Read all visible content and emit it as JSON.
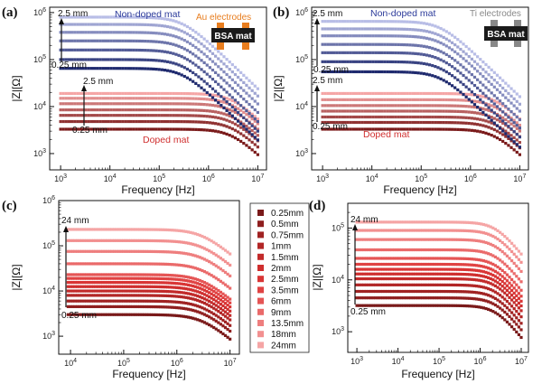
{
  "chart_data": [
    {
      "panel": "(a)",
      "type": "scatter",
      "xlabel": "Frequency [Hz]",
      "ylabel": "|Z|[Ω]",
      "xscale": "log",
      "yscale": "log",
      "xlim": [
        600,
        15000000
      ],
      "ylim": [
        450,
        1300000
      ],
      "xticks": [
        "10^3",
        "10^4",
        "10^5",
        "10^6",
        "10^7"
      ],
      "yticks": [
        "10^3",
        "10^4",
        "10^5",
        "10^6"
      ],
      "annotations": {
        "non_doped_top": "2.5 mm",
        "non_doped_bottom": "0.25 mm",
        "non_doped_label": "Non-doped mat",
        "doped_top": "2.5 mm",
        "doped_bottom": "0.25 mm",
        "doped_label": "Doped mat",
        "electrode_label": "Au electrodes",
        "chip_label": "BSA mat"
      },
      "series": [
        {
          "group": "Non-doped mat",
          "spacing": "2.5 mm",
          "plateau": 800000,
          "fc": 300000,
          "end_freq": 10000000
        },
        {
          "group": "Non-doped mat",
          "spacing": "2.0 mm",
          "plateau": 560000,
          "fc": 300000,
          "end_freq": 10000000
        },
        {
          "group": "Non-doped mat",
          "spacing": "1.5 mm",
          "plateau": 380000,
          "fc": 300000,
          "end_freq": 10000000
        },
        {
          "group": "Non-doped mat",
          "spacing": "1.0 mm",
          "plateau": 250000,
          "fc": 300000,
          "end_freq": 10000000
        },
        {
          "group": "Non-doped mat",
          "spacing": "0.75 mm",
          "plateau": 160000,
          "fc": 300000,
          "end_freq": 10000000
        },
        {
          "group": "Non-doped mat",
          "spacing": "0.5 mm",
          "plateau": 100000,
          "fc": 300000,
          "end_freq": 10000000
        },
        {
          "group": "Non-doped mat",
          "spacing": "0.25 mm",
          "plateau": 65000,
          "fc": 300000,
          "end_freq": 10000000
        },
        {
          "group": "Doped mat",
          "spacing": "2.5 mm",
          "plateau": 19000,
          "fc": 3000000,
          "end_freq": 10000000
        },
        {
          "group": "Doped mat",
          "spacing": "2.0 mm",
          "plateau": 15000,
          "fc": 3000000,
          "end_freq": 10000000
        },
        {
          "group": "Doped mat",
          "spacing": "1.5 mm",
          "plateau": 11500,
          "fc": 3000000,
          "end_freq": 10000000
        },
        {
          "group": "Doped mat",
          "spacing": "1.0 mm",
          "plateau": 8500,
          "fc": 3000000,
          "end_freq": 10000000
        },
        {
          "group": "Doped mat",
          "spacing": "0.75 mm",
          "plateau": 6500,
          "fc": 3000000,
          "end_freq": 10000000
        },
        {
          "group": "Doped mat",
          "spacing": "0.5 mm",
          "plateau": 4800,
          "fc": 3000000,
          "end_freq": 10000000
        },
        {
          "group": "Doped mat",
          "spacing": "0.25 mm",
          "plateau": 3300,
          "fc": 3000000,
          "end_freq": 10000000
        }
      ]
    },
    {
      "panel": "(b)",
      "type": "scatter",
      "xlabel": "Frequency [Hz]",
      "ylabel": "|Z|[Ω]",
      "xscale": "log",
      "yscale": "log",
      "xlim": [
        600,
        15000000
      ],
      "ylim": [
        450,
        1300000
      ],
      "xticks": [
        "10^3",
        "10^4",
        "10^5",
        "10^6",
        "10^7"
      ],
      "yticks": [
        "10^3",
        "10^4",
        "10^5",
        "10^6"
      ],
      "annotations": {
        "non_doped_top": "2.5 mm",
        "non_doped_bottom": "0.25 mm",
        "non_doped_label": "Non-doped mat",
        "doped_top": "2.5 mm",
        "doped_bottom": "0.25 mm",
        "doped_label": "Doped mat",
        "electrode_label": "Ti electrodes",
        "chip_label": "BSA mat"
      },
      "series": [
        {
          "group": "Non-doped mat",
          "spacing": "2.5 mm",
          "plateau": 650000,
          "fc": 250000,
          "end_freq": 10000000
        },
        {
          "group": "Non-doped mat",
          "spacing": "2.0 mm",
          "plateau": 450000,
          "fc": 250000,
          "end_freq": 10000000
        },
        {
          "group": "Non-doped mat",
          "spacing": "1.5 mm",
          "plateau": 320000,
          "fc": 250000,
          "end_freq": 10000000
        },
        {
          "group": "Non-doped mat",
          "spacing": "1.0 mm",
          "plateau": 210000,
          "fc": 250000,
          "end_freq": 10000000
        },
        {
          "group": "Non-doped mat",
          "spacing": "0.75 mm",
          "plateau": 140000,
          "fc": 250000,
          "end_freq": 10000000
        },
        {
          "group": "Non-doped mat",
          "spacing": "0.5 mm",
          "plateau": 90000,
          "fc": 250000,
          "end_freq": 10000000
        },
        {
          "group": "Non-doped mat",
          "spacing": "0.25 mm",
          "plateau": 55000,
          "fc": 250000,
          "end_freq": 10000000
        },
        {
          "group": "Doped mat",
          "spacing": "2.5 mm",
          "plateau": 19000,
          "fc": 3000000,
          "end_freq": 10000000
        },
        {
          "group": "Doped mat",
          "spacing": "2.0 mm",
          "plateau": 14000,
          "fc": 3000000,
          "end_freq": 10000000
        },
        {
          "group": "Doped mat",
          "spacing": "1.5 mm",
          "plateau": 10500,
          "fc": 3000000,
          "end_freq": 10000000
        },
        {
          "group": "Doped mat",
          "spacing": "1.0 mm",
          "plateau": 8000,
          "fc": 3000000,
          "end_freq": 10000000
        },
        {
          "group": "Doped mat",
          "spacing": "0.75 mm",
          "plateau": 6000,
          "fc": 3000000,
          "end_freq": 10000000
        },
        {
          "group": "Doped mat",
          "spacing": "0.5 mm",
          "plateau": 4600,
          "fc": 3000000,
          "end_freq": 10000000
        },
        {
          "group": "Doped mat",
          "spacing": "0.25 mm",
          "plateau": 3300,
          "fc": 3000000,
          "end_freq": 10000000
        }
      ]
    },
    {
      "panel": "(c)",
      "type": "scatter",
      "xlabel": "Frequency [Hz]",
      "ylabel": "|Z|[Ω]",
      "xscale": "log",
      "yscale": "log",
      "xlim": [
        6000,
        15000000
      ],
      "ylim": [
        400,
        1000000
      ],
      "xticks": [
        "10^4",
        "10^5",
        "10^6",
        "10^7"
      ],
      "yticks": [
        "10^3",
        "10^4",
        "10^5",
        "10^6"
      ],
      "annotations": {
        "top": "24 mm",
        "bottom": "0.25 mm"
      },
      "series": [
        {
          "spacing": "0.25mm",
          "color": "#7a1a1a",
          "plateau": 3000,
          "start_freq": 9000,
          "fc": 3000000
        },
        {
          "spacing": "0.5mm",
          "color": "#8f1f1f",
          "plateau": 4500,
          "start_freq": 9000,
          "fc": 3000000
        },
        {
          "spacing": "0.75mm",
          "color": "#a02222",
          "plateau": 6000,
          "start_freq": 9000,
          "fc": 3000000
        },
        {
          "spacing": "1mm",
          "color": "#b22626",
          "plateau": 8000,
          "start_freq": 9000,
          "fc": 3000000
        },
        {
          "spacing": "1.5mm",
          "color": "#c22a2a",
          "plateau": 10000,
          "start_freq": 9000,
          "fc": 3000000
        },
        {
          "spacing": "2mm",
          "color": "#cf2e2e",
          "plateau": 12500,
          "start_freq": 9000,
          "fc": 3000000
        },
        {
          "spacing": "2.5mm",
          "color": "#d93535",
          "plateau": 15500,
          "start_freq": 9000,
          "fc": 3000000
        },
        {
          "spacing": "3.5mm",
          "color": "#e04343",
          "plateau": 19000,
          "start_freq": 9000,
          "fc": 3000000
        },
        {
          "spacing": "6mm",
          "color": "#e55555",
          "plateau": 23000,
          "start_freq": 9000,
          "fc": 3000000
        },
        {
          "spacing": "9mm",
          "color": "#ea6a6a",
          "plateau": 40000,
          "start_freq": 9000,
          "fc": 3000000
        },
        {
          "spacing": "13.5mm",
          "color": "#ee7e7e",
          "plateau": 75000,
          "start_freq": 9000,
          "fc": 3000000
        },
        {
          "spacing": "18mm",
          "color": "#f29090",
          "plateau": 130000,
          "start_freq": 9000,
          "fc": 3000000
        },
        {
          "spacing": "24mm",
          "color": "#f5a5a5",
          "plateau": 230000,
          "start_freq": 9000,
          "fc": 3000000
        }
      ]
    },
    {
      "panel": "(d)",
      "type": "scatter",
      "xlabel": "Frequency [Hz]",
      "ylabel": "|Z|[Ω]",
      "xscale": "log",
      "yscale": "log",
      "xlim": [
        600,
        15000000
      ],
      "ylim": [
        400,
        300000
      ],
      "xticks": [
        "10^3",
        "10^4",
        "10^5",
        "10^6",
        "10^7"
      ],
      "yticks": [
        "10^3",
        "10^4",
        "10^5"
      ],
      "annotations": {
        "top": "24 mm",
        "bottom": "0.25 mm"
      },
      "series": [
        {
          "spacing": "0.25mm",
          "color": "#7a1a1a",
          "plateau": 3200,
          "start_freq": 1000,
          "fc": 2500000
        },
        {
          "spacing": "0.5mm",
          "color": "#8f1f1f",
          "plateau": 4500,
          "start_freq": 1000,
          "fc": 2500000
        },
        {
          "spacing": "0.75mm",
          "color": "#a02222",
          "plateau": 6000,
          "start_freq": 1000,
          "fc": 2500000
        },
        {
          "spacing": "1mm",
          "color": "#b22626",
          "plateau": 8000,
          "start_freq": 1000,
          "fc": 2500000
        },
        {
          "spacing": "1.5mm",
          "color": "#c22a2a",
          "plateau": 10500,
          "start_freq": 1000,
          "fc": 2500000
        },
        {
          "spacing": "2mm",
          "color": "#cf2e2e",
          "plateau": 13000,
          "start_freq": 1000,
          "fc": 2500000
        },
        {
          "spacing": "2.5mm",
          "color": "#d93535",
          "plateau": 16000,
          "start_freq": 1000,
          "fc": 2500000
        },
        {
          "spacing": "3.5mm",
          "color": "#e04343",
          "plateau": 20000,
          "start_freq": 1000,
          "fc": 2500000
        },
        {
          "spacing": "6mm",
          "color": "#e55555",
          "plateau": 26000,
          "start_freq": 1000,
          "fc": 2500000
        },
        {
          "spacing": "9mm",
          "color": "#ea6a6a",
          "plateau": 38000,
          "start_freq": 1000,
          "fc": 2500000
        },
        {
          "spacing": "13.5mm",
          "color": "#ee7e7e",
          "plateau": 60000,
          "start_freq": 1000,
          "fc": 2500000
        },
        {
          "spacing": "18mm",
          "color": "#f29090",
          "plateau": 90000,
          "start_freq": 1000,
          "fc": 2500000
        },
        {
          "spacing": "24mm",
          "color": "#f5a5a5",
          "plateau": 130000,
          "start_freq": 1000,
          "fc": 2500000
        }
      ]
    }
  ],
  "legend": {
    "entries": [
      "0.25mm",
      "0.5mm",
      "0.75mm",
      "1mm",
      "1.5mm",
      "2mm",
      "2.5mm",
      "3.5mm",
      "6mm",
      "9mm",
      "13.5mm",
      "18mm",
      "24mm"
    ],
    "colors": [
      "#7a1a1a",
      "#8f1f1f",
      "#a02222",
      "#b22626",
      "#c22a2a",
      "#cf2e2e",
      "#d93535",
      "#e04343",
      "#e55555",
      "#ea6a6a",
      "#ee7e7e",
      "#f29090",
      "#f5a5a5"
    ]
  },
  "colors": {
    "non_doped_dark": "#1f2a6e",
    "non_doped_light": "#b8bde6",
    "doped_dark": "#7a1a1a",
    "doped_light": "#f5a5a5",
    "non_doped_text": "#2b3a9a",
    "doped_text": "#d03030",
    "au_electrode": "#e87d1e",
    "ti_electrode": "#888888",
    "chip": "#1a1a1a"
  }
}
